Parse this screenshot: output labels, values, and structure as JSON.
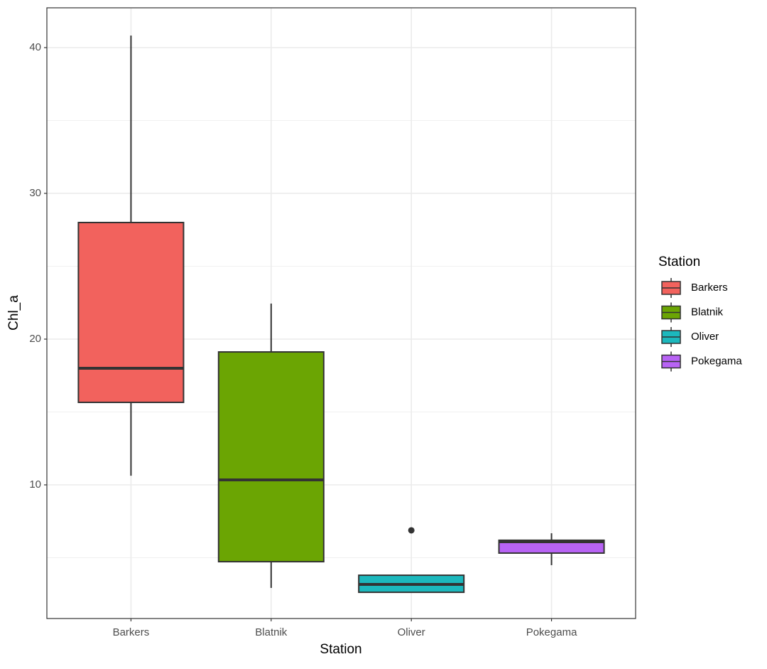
{
  "chart_data": {
    "type": "box",
    "x_label": "Station",
    "y_label": "Chl_a",
    "legend_title": "Station",
    "categories": [
      "Barkers",
      "Blatnik",
      "Oliver",
      "Pokegama"
    ],
    "series": [
      {
        "name": "Barkers",
        "color": "#F2625D",
        "min": 10.63,
        "q1": 15.66,
        "median": 18.0,
        "q3": 28.0,
        "max": 40.83,
        "outliers": []
      },
      {
        "name": "Blatnik",
        "color": "#6BA503",
        "min": 2.93,
        "q1": 4.73,
        "median": 10.34,
        "q3": 19.12,
        "max": 22.44,
        "outliers": []
      },
      {
        "name": "Oliver",
        "color": "#1CB8BD",
        "min": 2.63,
        "q1": 2.63,
        "median": 3.17,
        "q3": 3.8,
        "max": 3.8,
        "outliers": [
          6.88
        ]
      },
      {
        "name": "Pokegama",
        "color": "#B863F5",
        "min": 4.49,
        "q1": 5.32,
        "median": 6.1,
        "q3": 6.2,
        "max": 6.68,
        "outliers": []
      }
    ],
    "ylim": [
      0.83,
      42.73
    ],
    "yticks": [
      10,
      20,
      30,
      40
    ],
    "yminorticks": [
      5,
      15,
      25,
      35
    ],
    "grid": true,
    "legend": "right"
  }
}
